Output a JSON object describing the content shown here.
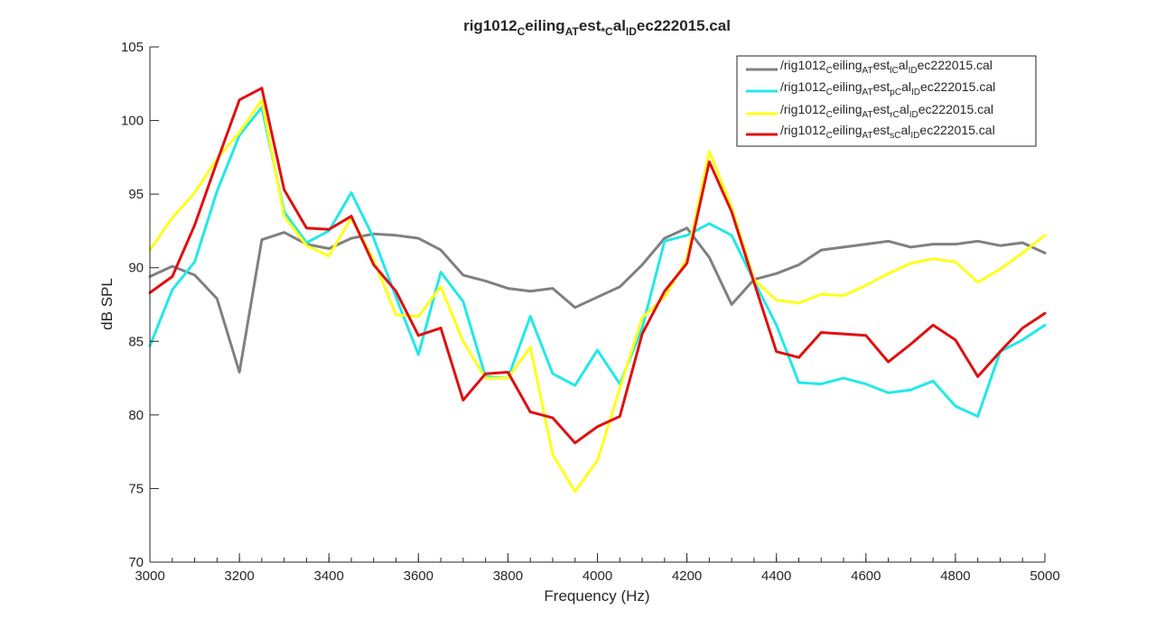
{
  "chart_data": {
    "type": "line",
    "title": {
      "a": "rig1012",
      "b": "C",
      "c": "eiling",
      "d": "AT",
      "e": "est",
      "f": "*C",
      "g": "al",
      "h": "ID",
      "i": "ec222015.cal"
    },
    "xlabel": "Frequency (Hz)",
    "ylabel": "dB SPL",
    "xlim": [
      3000,
      5000
    ],
    "ylim": [
      70,
      105
    ],
    "xticks": [
      3000,
      3200,
      3400,
      3600,
      3800,
      4000,
      4200,
      4400,
      4600,
      4800,
      5000
    ],
    "yticks": [
      70,
      75,
      80,
      85,
      90,
      95,
      100,
      105
    ],
    "grid": false,
    "legend_position": "top-right",
    "x": [
      3000,
      3050,
      3100,
      3150,
      3200,
      3250,
      3300,
      3350,
      3400,
      3450,
      3500,
      3550,
      3600,
      3650,
      3700,
      3750,
      3800,
      3850,
      3900,
      3950,
      4000,
      4050,
      4100,
      4150,
      4200,
      4250,
      4300,
      4350,
      4400,
      4450,
      4500,
      4550,
      4600,
      4650,
      4700,
      4750,
      4800,
      4850,
      4900,
      4950,
      5000
    ],
    "series": [
      {
        "legend": {
          "a": "/rig1012",
          "b": "C",
          "c": "eiling",
          "d": "AT",
          "e": "est",
          "f": "lC",
          "g": "al",
          "h": "ID",
          "i": "ec222015.cal"
        },
        "color": "#808080",
        "values": [
          89.4,
          90.1,
          89.5,
          87.9,
          82.9,
          91.9,
          92.4,
          91.6,
          91.3,
          92.0,
          92.3,
          92.2,
          92.0,
          91.2,
          89.5,
          89.1,
          88.6,
          88.4,
          88.6,
          87.3,
          88.0,
          88.7,
          90.2,
          92.0,
          92.7,
          90.7,
          87.5,
          89.2,
          89.6,
          90.2,
          91.2,
          91.4,
          91.6,
          91.8,
          91.4,
          91.6,
          91.6,
          91.8,
          91.5,
          91.7,
          91.0
        ]
      },
      {
        "legend": {
          "a": "/rig1012",
          "b": "C",
          "c": "eiling",
          "d": "AT",
          "e": "est",
          "f": "pC",
          "g": "al",
          "h": "ID",
          "i": "ec222015.cal"
        },
        "color": "#22e8e8",
        "values": [
          84.7,
          88.5,
          90.4,
          95.2,
          99.0,
          100.9,
          93.8,
          91.7,
          92.5,
          95.1,
          92.0,
          88.0,
          84.1,
          89.7,
          87.7,
          82.6,
          82.5,
          86.7,
          82.8,
          82.0,
          84.4,
          82.1,
          85.9,
          91.8,
          92.2,
          93.0,
          92.2,
          89.1,
          86.1,
          82.2,
          82.1,
          82.5,
          82.1,
          81.5,
          81.7,
          82.3,
          80.6,
          79.9,
          84.3,
          85.1,
          86.1
        ]
      },
      {
        "legend": {
          "a": "/rig1012",
          "b": "C",
          "c": "eiling",
          "d": "AT",
          "e": "est",
          "f": "rC",
          "g": "al",
          "h": "ID",
          "i": "ec222015.cal"
        },
        "color": "#ffff1a",
        "values": [
          91.2,
          93.4,
          95.1,
          97.4,
          99.2,
          101.4,
          93.5,
          91.5,
          90.8,
          93.4,
          90.5,
          86.8,
          86.7,
          88.7,
          85.0,
          82.5,
          82.5,
          84.6,
          77.3,
          74.8,
          76.9,
          81.8,
          86.6,
          88.0,
          90.6,
          97.9,
          94.1,
          89.2,
          87.8,
          87.6,
          88.2,
          88.1,
          88.8,
          89.6,
          90.3,
          90.6,
          90.4,
          89.0,
          89.9,
          91.0,
          92.2
        ]
      },
      {
        "legend": {
          "a": "/rig1012",
          "b": "C",
          "c": "eiling",
          "d": "AT",
          "e": "est",
          "f": "sC",
          "g": "al",
          "h": "ID",
          "i": "ec222015.cal"
        },
        "color": "#e01010",
        "values": [
          88.3,
          89.4,
          92.9,
          97.2,
          101.4,
          102.2,
          95.3,
          92.7,
          92.6,
          93.5,
          90.2,
          88.4,
          85.4,
          85.9,
          81.0,
          82.8,
          82.9,
          80.2,
          79.8,
          78.1,
          79.2,
          79.9,
          85.5,
          88.4,
          90.3,
          97.2,
          93.8,
          89.0,
          84.3,
          83.9,
          85.6,
          85.5,
          85.4,
          83.6,
          84.8,
          86.1,
          85.1,
          82.6,
          84.3,
          85.9,
          86.9
        ]
      }
    ]
  }
}
